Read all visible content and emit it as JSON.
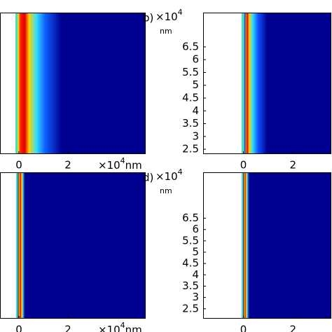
{
  "chart_data": [
    {
      "type": "heatmap",
      "xlim": [
        -0.77,
        5.17
      ],
      "xticks": [
        0,
        2
      ],
      "x_multiplier": "×10",
      "x_exponent": "4",
      "x_unit": "nm"
    },
    {
      "type": "heatmap",
      "label": "b)",
      "xlim": [
        -1.63,
        3.55
      ],
      "xticks": [
        0,
        2
      ],
      "ylim": [
        2.31,
        7.84
      ],
      "yticks": [
        2.5,
        3,
        3.5,
        4,
        4.5,
        5,
        5.5,
        6,
        6.5
      ],
      "y_multiplier": "×10",
      "y_exponent": "4",
      "y_unit": "nm"
    },
    {
      "type": "heatmap",
      "xlim": [
        -0.77,
        5.17
      ],
      "xticks": [
        0,
        2
      ],
      "x_multiplier": "×10",
      "x_exponent": "4",
      "x_unit": "nm"
    },
    {
      "type": "heatmap",
      "label": "d)",
      "xlim": [
        -1.63,
        3.55
      ],
      "xticks": [
        0,
        2
      ],
      "ylim": [
        2.06,
        8.53
      ],
      "yticks": [
        2.5,
        3,
        3.5,
        4,
        4.5,
        5,
        5.5,
        6,
        6.5
      ],
      "y_multiplier": "×10",
      "y_exponent": "4",
      "y_unit": "nm"
    }
  ]
}
